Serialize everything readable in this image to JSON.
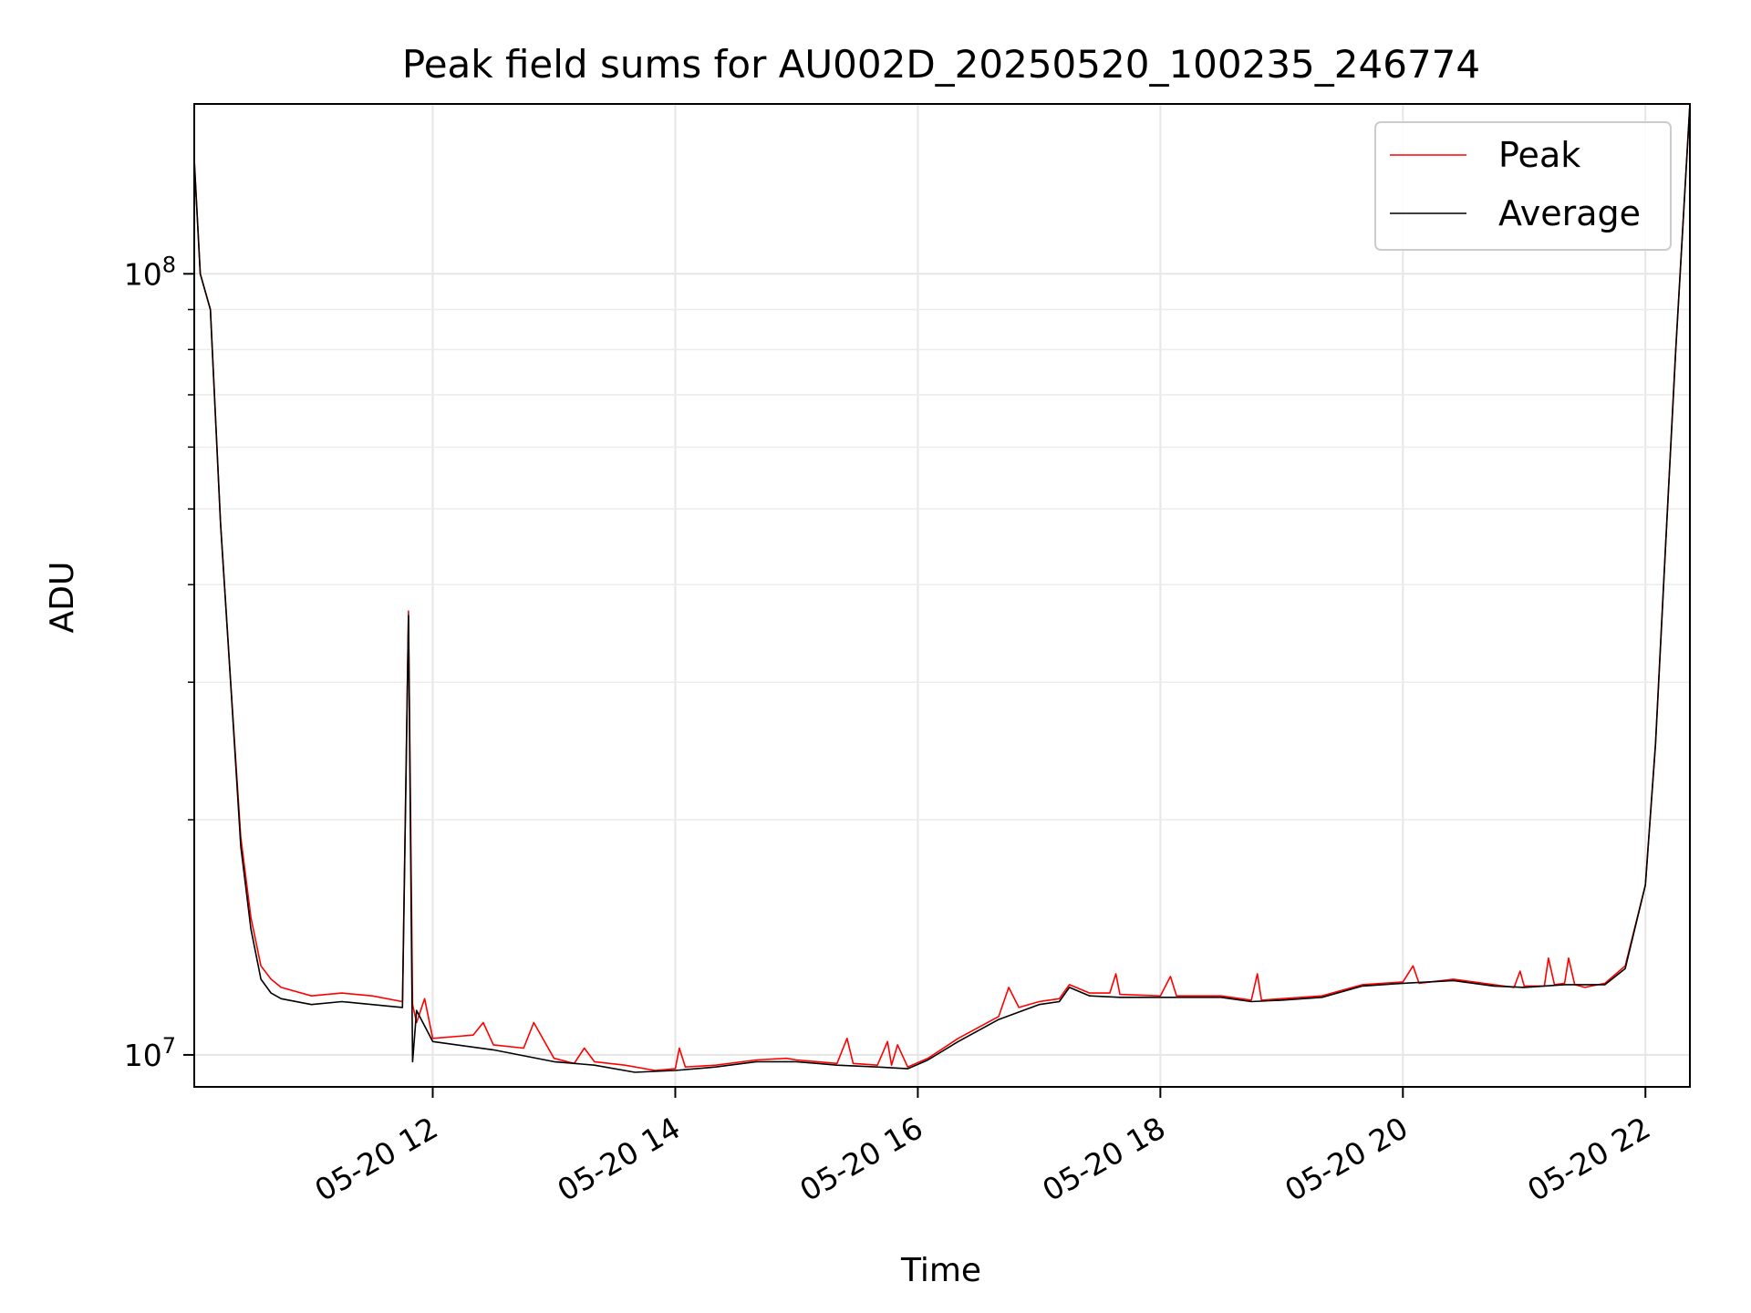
{
  "chart_data": {
    "type": "line",
    "title": "Peak field sums for AU002D_20250520_100235_246774",
    "xlabel": "Time",
    "ylabel": "ADU",
    "yscale": "log",
    "xlim": [
      "2025-05-20 10:02",
      "2025-05-20 22:22"
    ],
    "ylim": [
      9100000,
      165000000
    ],
    "grid": true,
    "legend_placement": "top-right",
    "x_ticks": [
      "05-20 12",
      "05-20 14",
      "05-20 16",
      "05-20 18",
      "05-20 20",
      "05-20 22"
    ],
    "x_tick_times": [
      "2025-05-20 12:00",
      "2025-05-20 14:00",
      "2025-05-20 16:00",
      "2025-05-20 18:00",
      "2025-05-20 20:00",
      "2025-05-20 22:00"
    ],
    "y_ticks": [
      {
        "value": 10000000,
        "base": "10",
        "exp": "7"
      },
      {
        "value": 100000000,
        "base": "10",
        "exp": "8"
      }
    ],
    "series": [
      {
        "name": "Peak",
        "color": "#ff0000",
        "points": [
          [
            "2025-05-20 10:02",
            140000000
          ],
          [
            "2025-05-20 10:05",
            100000000
          ],
          [
            "2025-05-20 10:10",
            90000000
          ],
          [
            "2025-05-20 10:15",
            48000000
          ],
          [
            "2025-05-20 10:20",
            30000000
          ],
          [
            "2025-05-20 10:25",
            19000000
          ],
          [
            "2025-05-20 10:30",
            15000000
          ],
          [
            "2025-05-20 10:35",
            13000000
          ],
          [
            "2025-05-20 10:40",
            12500000
          ],
          [
            "2025-05-20 10:45",
            12200000
          ],
          [
            "2025-05-20 11:00",
            11900000
          ],
          [
            "2025-05-20 11:15",
            12000000
          ],
          [
            "2025-05-20 11:30",
            11900000
          ],
          [
            "2025-05-20 11:45",
            11700000
          ],
          [
            "2025-05-20 11:48",
            37000000
          ],
          [
            "2025-05-20 11:50",
            11600000
          ],
          [
            "2025-05-20 11:52",
            11000000
          ],
          [
            "2025-05-20 11:56",
            11800000
          ],
          [
            "2025-05-20 12:00",
            10500000
          ],
          [
            "2025-05-20 12:20",
            10600000
          ],
          [
            "2025-05-20 12:25",
            11000000
          ],
          [
            "2025-05-20 12:30",
            10300000
          ],
          [
            "2025-05-20 12:45",
            10200000
          ],
          [
            "2025-05-20 12:50",
            11000000
          ],
          [
            "2025-05-20 13:00",
            9900000
          ],
          [
            "2025-05-20 13:10",
            9750000
          ],
          [
            "2025-05-20 13:15",
            10200000
          ],
          [
            "2025-05-20 13:20",
            9800000
          ],
          [
            "2025-05-20 13:35",
            9700000
          ],
          [
            "2025-05-20 13:50",
            9550000
          ],
          [
            "2025-05-20 14:00",
            9600000
          ],
          [
            "2025-05-20 14:02",
            10200000
          ],
          [
            "2025-05-20 14:05",
            9650000
          ],
          [
            "2025-05-20 14:20",
            9700000
          ],
          [
            "2025-05-20 14:40",
            9850000
          ],
          [
            "2025-05-20 14:55",
            9900000
          ],
          [
            "2025-05-20 15:00",
            9850000
          ],
          [
            "2025-05-20 15:20",
            9750000
          ],
          [
            "2025-05-20 15:25",
            10500000
          ],
          [
            "2025-05-20 15:28",
            9750000
          ],
          [
            "2025-05-20 15:40",
            9700000
          ],
          [
            "2025-05-20 15:45",
            10400000
          ],
          [
            "2025-05-20 15:47",
            9700000
          ],
          [
            "2025-05-20 15:50",
            10300000
          ],
          [
            "2025-05-20 15:55",
            9650000
          ],
          [
            "2025-05-20 16:05",
            9900000
          ],
          [
            "2025-05-20 16:20",
            10500000
          ],
          [
            "2025-05-20 16:40",
            11200000
          ],
          [
            "2025-05-20 16:45",
            12200000
          ],
          [
            "2025-05-20 16:50",
            11500000
          ],
          [
            "2025-05-20 17:00",
            11700000
          ],
          [
            "2025-05-20 17:10",
            11800000
          ],
          [
            "2025-05-20 17:15",
            12300000
          ],
          [
            "2025-05-20 17:25",
            12000000
          ],
          [
            "2025-05-20 17:35",
            12000000
          ],
          [
            "2025-05-20 17:38",
            12700000
          ],
          [
            "2025-05-20 17:40",
            11950000
          ],
          [
            "2025-05-20 18:00",
            11900000
          ],
          [
            "2025-05-20 18:05",
            12600000
          ],
          [
            "2025-05-20 18:08",
            11900000
          ],
          [
            "2025-05-20 18:30",
            11900000
          ],
          [
            "2025-05-20 18:45",
            11750000
          ],
          [
            "2025-05-20 18:48",
            12700000
          ],
          [
            "2025-05-20 18:50",
            11750000
          ],
          [
            "2025-05-20 19:00",
            11800000
          ],
          [
            "2025-05-20 19:20",
            11900000
          ],
          [
            "2025-05-20 19:40",
            12300000
          ],
          [
            "2025-05-20 20:00",
            12400000
          ],
          [
            "2025-05-20 20:05",
            13000000
          ],
          [
            "2025-05-20 20:08",
            12350000
          ],
          [
            "2025-05-20 20:25",
            12500000
          ],
          [
            "2025-05-20 20:45",
            12300000
          ],
          [
            "2025-05-20 20:55",
            12200000
          ],
          [
            "2025-05-20 20:58",
            12800000
          ],
          [
            "2025-05-20 21:00",
            12250000
          ],
          [
            "2025-05-20 21:10",
            12250000
          ],
          [
            "2025-05-20 21:12",
            13300000
          ],
          [
            "2025-05-20 21:15",
            12300000
          ],
          [
            "2025-05-20 21:20",
            12350000
          ],
          [
            "2025-05-20 21:22",
            13300000
          ],
          [
            "2025-05-20 21:25",
            12300000
          ],
          [
            "2025-05-20 21:30",
            12200000
          ],
          [
            "2025-05-20 21:40",
            12350000
          ],
          [
            "2025-05-20 21:50",
            13000000
          ],
          [
            "2025-05-20 22:00",
            16500000
          ],
          [
            "2025-05-20 22:05",
            25000000
          ],
          [
            "2025-05-20 22:10",
            45000000
          ],
          [
            "2025-05-20 22:15",
            80000000
          ],
          [
            "2025-05-20 22:22",
            165000000
          ]
        ]
      },
      {
        "name": "Average",
        "color": "#000000",
        "points": [
          [
            "2025-05-20 10:02",
            140000000
          ],
          [
            "2025-05-20 10:05",
            100000000
          ],
          [
            "2025-05-20 10:10",
            90000000
          ],
          [
            "2025-05-20 10:15",
            48000000
          ],
          [
            "2025-05-20 10:20",
            30000000
          ],
          [
            "2025-05-20 10:25",
            18500000
          ],
          [
            "2025-05-20 10:30",
            14500000
          ],
          [
            "2025-05-20 10:35",
            12500000
          ],
          [
            "2025-05-20 10:40",
            12000000
          ],
          [
            "2025-05-20 10:45",
            11800000
          ],
          [
            "2025-05-20 11:00",
            11600000
          ],
          [
            "2025-05-20 11:15",
            11700000
          ],
          [
            "2025-05-20 11:30",
            11600000
          ],
          [
            "2025-05-20 11:45",
            11500000
          ],
          [
            "2025-05-20 11:48",
            36500000
          ],
          [
            "2025-05-20 11:50",
            9800000
          ],
          [
            "2025-05-20 11:52",
            11400000
          ],
          [
            "2025-05-20 12:00",
            10400000
          ],
          [
            "2025-05-20 12:30",
            10150000
          ],
          [
            "2025-05-20 13:00",
            9800000
          ],
          [
            "2025-05-20 13:20",
            9700000
          ],
          [
            "2025-05-20 13:40",
            9500000
          ],
          [
            "2025-05-20 14:00",
            9550000
          ],
          [
            "2025-05-20 14:20",
            9650000
          ],
          [
            "2025-05-20 14:40",
            9800000
          ],
          [
            "2025-05-20 15:00",
            9800000
          ],
          [
            "2025-05-20 15:20",
            9700000
          ],
          [
            "2025-05-20 15:40",
            9650000
          ],
          [
            "2025-05-20 15:55",
            9600000
          ],
          [
            "2025-05-20 16:05",
            9850000
          ],
          [
            "2025-05-20 16:20",
            10400000
          ],
          [
            "2025-05-20 16:40",
            11100000
          ],
          [
            "2025-05-20 17:00",
            11600000
          ],
          [
            "2025-05-20 17:10",
            11700000
          ],
          [
            "2025-05-20 17:15",
            12200000
          ],
          [
            "2025-05-20 17:25",
            11900000
          ],
          [
            "2025-05-20 17:40",
            11850000
          ],
          [
            "2025-05-20 18:00",
            11850000
          ],
          [
            "2025-05-20 18:30",
            11850000
          ],
          [
            "2025-05-20 18:45",
            11700000
          ],
          [
            "2025-05-20 19:00",
            11750000
          ],
          [
            "2025-05-20 19:20",
            11850000
          ],
          [
            "2025-05-20 19:40",
            12250000
          ],
          [
            "2025-05-20 20:00",
            12350000
          ],
          [
            "2025-05-20 20:25",
            12450000
          ],
          [
            "2025-05-20 20:45",
            12250000
          ],
          [
            "2025-05-20 21:00",
            12200000
          ],
          [
            "2025-05-20 21:20",
            12300000
          ],
          [
            "2025-05-20 21:40",
            12300000
          ],
          [
            "2025-05-20 21:50",
            12900000
          ],
          [
            "2025-05-20 22:00",
            16500000
          ],
          [
            "2025-05-20 22:05",
            25000000
          ],
          [
            "2025-05-20 22:10",
            45000000
          ],
          [
            "2025-05-20 22:15",
            80000000
          ],
          [
            "2025-05-20 22:22",
            165000000
          ]
        ]
      }
    ]
  }
}
